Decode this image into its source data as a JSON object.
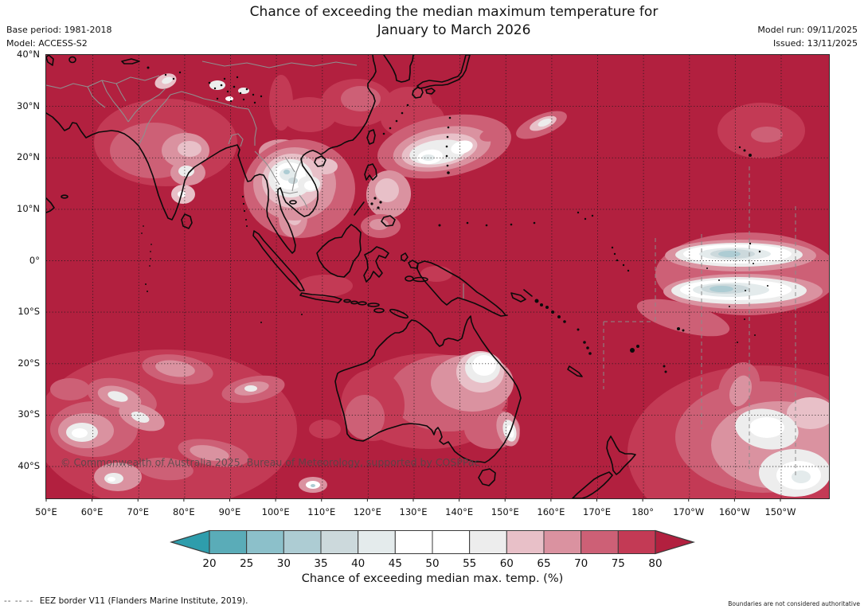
{
  "header": {
    "title_line1": "Chance of exceeding the median maximum temperature for",
    "title_line2": "January to March 2026",
    "base_period": "Base period: 1981-2018",
    "model": "Model: ACCESS-S2",
    "model_run": "Model run: 09/11/2025",
    "issued": "Issued: 13/11/2025"
  },
  "map": {
    "watermark": "© Commonwealth of Australia 2025, Bureau of Meteorology, supported by COSPPac",
    "lat_labels": [
      "40°N",
      "30°N",
      "20°N",
      "10°N",
      "0°",
      "10°S",
      "20°S",
      "30°S",
      "40°S"
    ],
    "lon_labels": [
      "50°E",
      "60°E",
      "70°E",
      "80°E",
      "90°E",
      "100°E",
      "110°E",
      "120°E",
      "130°E",
      "140°E",
      "150°E",
      "160°E",
      "170°E",
      "180°",
      "170°W",
      "160°W",
      "150°W"
    ]
  },
  "colorbar": {
    "label": "Chance of exceeding median max. temp. (%)",
    "ticks": [
      "20",
      "25",
      "30",
      "35",
      "40",
      "45",
      "50",
      "55",
      "60",
      "65",
      "70",
      "75",
      "80"
    ],
    "segment_colors": [
      "#5aacb8",
      "#8cc0ca",
      "#adccd3",
      "#ccd9dc",
      "#e4ebec",
      "#ffffff",
      "#ffffff",
      "#ededed",
      "#e8c0c8",
      "#da92a0",
      "#cd6076",
      "#c33a55"
    ],
    "left_arrow_color": "#2e9dac",
    "right_arrow_color": "#b2203f"
  },
  "footer": {
    "eez_symbol": "--  --  --",
    "eez_label": "EEZ border V11 (Flanders Marine Institute, 2019).",
    "disclaimer": "Boundaries are not considered authoritative"
  },
  "chart_data": {
    "type": "heatmap",
    "title": "Chance of exceeding the median maximum temperature for January to March 2026",
    "season": "January to March 2026",
    "base_period": "1981-2018",
    "model": "ACCESS-S2",
    "model_run": "09/11/2025",
    "issued": "13/11/2025",
    "colorbar_label": "Chance of exceeding median max. temp. (%)",
    "colorbar_ticks": [
      20,
      25,
      30,
      35,
      40,
      45,
      50,
      55,
      60,
      65,
      70,
      75,
      80
    ],
    "lon_ticks": [
      "50°E",
      "60°E",
      "70°E",
      "80°E",
      "90°E",
      "100°E",
      "110°E",
      "120°E",
      "130°E",
      "140°E",
      "150°E",
      "160°E",
      "170°E",
      "180°",
      "170°W",
      "160°W",
      "150°W"
    ],
    "lat_ticks": [
      "40°N",
      "30°N",
      "20°N",
      "10°N",
      "0°",
      "10°S",
      "20°S",
      "30°S",
      "40°S"
    ],
    "dominant_value": ">80% (dark red) over most land and ocean in the domain",
    "notable_low_chance_regions": [
      "Mainland Southeast Asia around Thailand/Laos/Vietnam, ~35-55%",
      "Subtropical NW Pacific band near 20°N, 130-145°E, ~45-55%",
      "Two equatorial central-Pacific bands near 0° and 5°S, 180°-150°W, ~30-50%",
      "Central and southeastern interior Australia, ~45-60%",
      "Scattered southern Indian Ocean patches (30-45°S), ~50-70%",
      "South Pacific near 30-45°S, 165-150°W, ~45-65%"
    ]
  }
}
